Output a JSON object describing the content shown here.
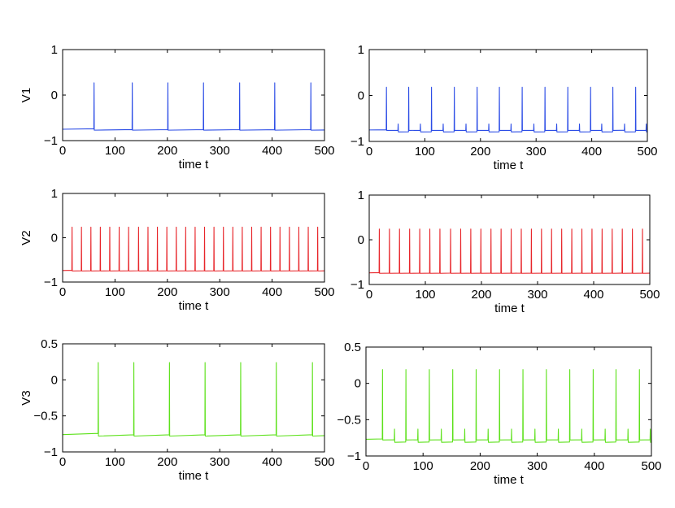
{
  "chart_data": [
    {
      "type": "line",
      "panel": "top-left",
      "ylabel": "V1",
      "xlabel": "time t",
      "xlim": [
        0,
        500
      ],
      "ylim": [
        -1,
        1
      ],
      "xticks": [
        0,
        100,
        200,
        300,
        400,
        500
      ],
      "yticks": [
        -1,
        0,
        1
      ],
      "ytick_labels": [
        "−1",
        "0",
        "1"
      ],
      "color": "#2b4ce6",
      "spike_times": [
        60,
        133,
        201,
        269,
        338,
        405,
        474
      ],
      "baseline_start": -0.75,
      "baseline_end": -0.67,
      "peak": 0.27,
      "reset": -0.77,
      "small_spike_times": [],
      "small_peak": null
    },
    {
      "type": "line",
      "panel": "top-right",
      "ylabel": "",
      "xlabel": "time t",
      "xlim": [
        0,
        500
      ],
      "ylim": [
        -1,
        1
      ],
      "xticks": [
        0,
        100,
        200,
        300,
        400,
        500
      ],
      "yticks": [
        -1,
        0,
        1
      ],
      "ytick_labels": [
        "−1",
        "0",
        "1"
      ],
      "color": "#2b4ce6",
      "spike_times": [
        31,
        71,
        112,
        153,
        194,
        234,
        275,
        316,
        357,
        398,
        438,
        479
      ],
      "baseline_start": -0.75,
      "baseline_end": -0.69,
      "peak": 0.18,
      "reset": -0.76,
      "small_spike_times": [
        52,
        92,
        133,
        174,
        215,
        255,
        296,
        337,
        378,
        418,
        459,
        498
      ],
      "small_peak": -0.62
    },
    {
      "type": "line",
      "panel": "middle-left",
      "ylabel": "V2",
      "xlabel": "time t",
      "xlim": [
        0,
        500
      ],
      "ylim": [
        -1,
        1
      ],
      "xticks": [
        0,
        100,
        200,
        300,
        400,
        500
      ],
      "yticks": [
        -1,
        0,
        1
      ],
      "ytick_labels": [
        "−1",
        "0",
        "1"
      ],
      "color": "#e8252a",
      "spike_times": [
        18,
        36,
        54,
        72,
        90,
        108,
        126,
        145,
        163,
        181,
        199,
        217,
        235,
        253,
        271,
        289,
        307,
        325,
        343,
        361,
        379,
        397,
        415,
        433,
        451,
        469,
        487
      ],
      "baseline_start": -0.74,
      "baseline_end": -0.62,
      "peak": 0.24,
      "reset": -0.75,
      "small_spike_times": [],
      "small_peak": null
    },
    {
      "type": "line",
      "panel": "middle-right",
      "ylabel": "",
      "xlabel": "time t",
      "xlim": [
        0,
        500
      ],
      "ylim": [
        -1,
        1
      ],
      "xticks": [
        0,
        100,
        200,
        300,
        400,
        500
      ],
      "yticks": [
        -1,
        0,
        1
      ],
      "ytick_labels": [
        "−1",
        "0",
        "1"
      ],
      "color": "#e8252a",
      "spike_times": [
        18,
        36,
        54,
        72,
        90,
        108,
        126,
        145,
        163,
        181,
        199,
        217,
        235,
        253,
        271,
        289,
        307,
        325,
        343,
        361,
        379,
        397,
        415,
        433,
        451,
        469,
        487
      ],
      "baseline_start": -0.74,
      "baseline_end": -0.62,
      "peak": 0.24,
      "reset": -0.75,
      "small_spike_times": [],
      "small_peak": null
    },
    {
      "type": "line",
      "panel": "bottom-left",
      "ylabel": "V3",
      "xlabel": "time t",
      "xlim": [
        0,
        500
      ],
      "ylim": [
        -1,
        0.5
      ],
      "xticks": [
        0,
        100,
        200,
        300,
        400,
        500
      ],
      "yticks": [
        -1,
        -0.5,
        0,
        0.5
      ],
      "ytick_labels": [
        "−1",
        "−0.5",
        "0",
        "0.5"
      ],
      "color": "#5de11b",
      "spike_times": [
        68,
        136,
        204,
        272,
        340,
        408,
        477
      ],
      "baseline_start": -0.76,
      "baseline_end": -0.63,
      "peak": 0.24,
      "reset": -0.78,
      "small_spike_times": [],
      "small_peak": null
    },
    {
      "type": "line",
      "panel": "bottom-right",
      "ylabel": "",
      "xlabel": "time t",
      "xlim": [
        0,
        500
      ],
      "ylim": [
        -1,
        0.5
      ],
      "xticks": [
        0,
        100,
        200,
        300,
        400,
        500
      ],
      "yticks": [
        -1,
        -0.5,
        0,
        0.5
      ],
      "ytick_labels": [
        "−1",
        "−0.5",
        "0",
        "0.5"
      ],
      "color": "#5de11b",
      "spike_times": [
        29,
        70,
        111,
        152,
        193,
        234,
        275,
        316,
        357,
        398,
        438,
        479
      ],
      "baseline_start": -0.77,
      "baseline_end": -0.68,
      "peak": 0.19,
      "reset": -0.78,
      "small_spike_times": [
        50,
        91,
        132,
        173,
        214,
        255,
        296,
        337,
        378,
        419,
        459,
        498
      ],
      "small_peak": -0.63
    }
  ]
}
